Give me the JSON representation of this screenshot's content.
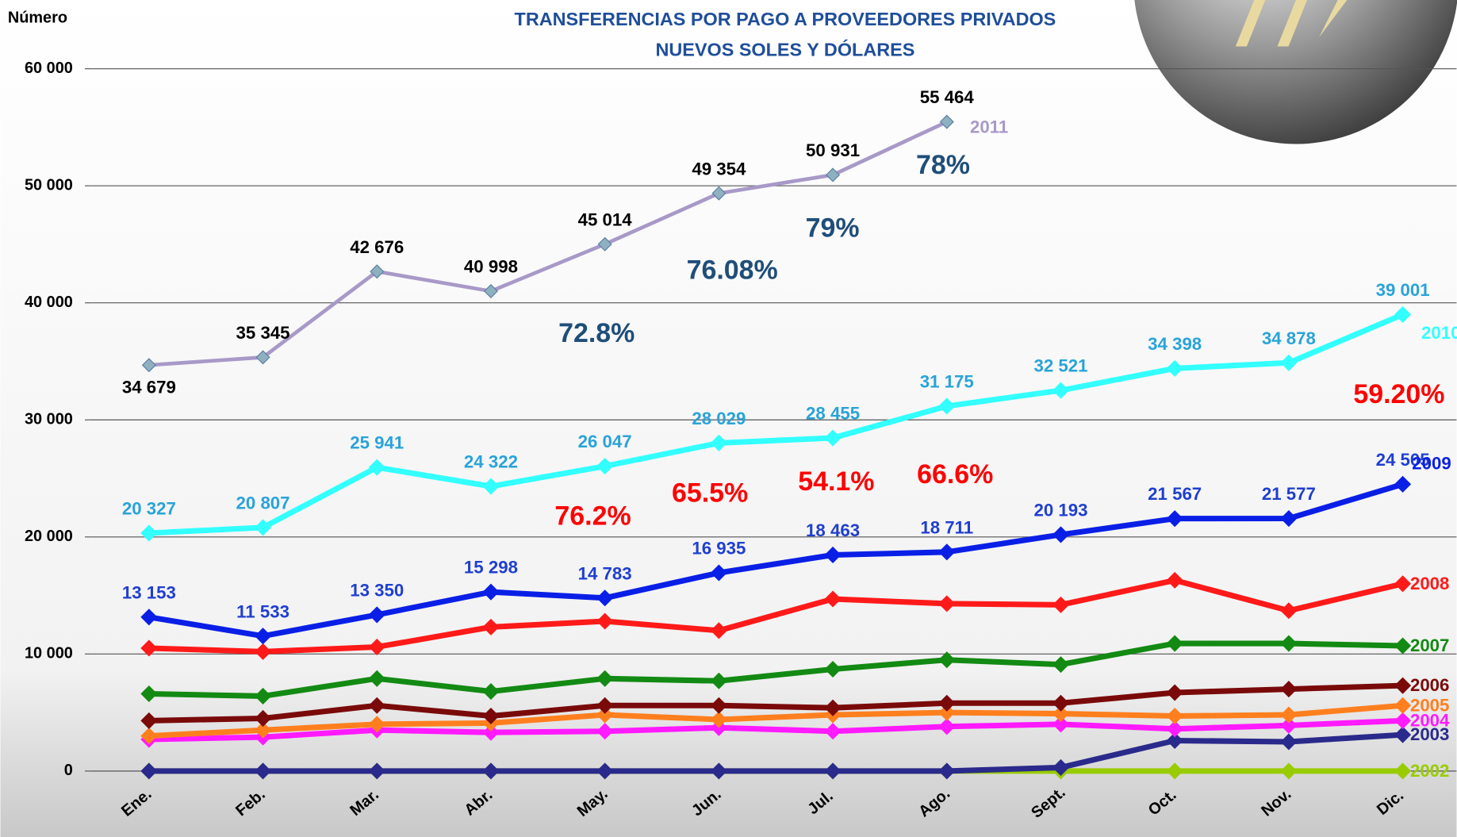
{
  "chart_data": {
    "type": "line",
    "title": "TRANSFERENCIAS POR PAGO A PROVEEDORES PRIVADOS",
    "subtitle": "NUEVOS SOLES Y  DÓLARES",
    "y_label": "Número",
    "categories": [
      "Ene.",
      "Feb.",
      "Mar.",
      "Abr.",
      "May.",
      "Jun.",
      "Jul.",
      "Ago.",
      "Sept.",
      "Oct.",
      "Nov.",
      "Dic."
    ],
    "ylim": [
      0,
      60000
    ],
    "yticks": [
      0,
      {
        "value": 10000,
        "label": "10 000"
      },
      {
        "value": 20000,
        "label": "20 000"
      },
      {
        "value": 30000,
        "label": "30 000"
      },
      {
        "value": 40000,
        "label": "40 000"
      },
      {
        "value": 50000,
        "label": "50 000"
      },
      {
        "value": 60000,
        "label": "60 000"
      }
    ],
    "grid": true,
    "series": [
      {
        "name": "2002",
        "color": "#99cc00",
        "values": [
          0,
          0,
          0,
          0,
          0,
          0,
          0,
          0,
          0,
          0,
          0,
          0
        ]
      },
      {
        "name": "2003",
        "color": "#2a2a8c",
        "values": [
          0,
          0,
          0,
          0,
          0,
          0,
          0,
          0,
          300,
          2600,
          2500,
          3100
        ]
      },
      {
        "name": "2004",
        "color": "#ff1aff",
        "values": [
          2700,
          2900,
          3500,
          3300,
          3400,
          3700,
          3400,
          3800,
          4000,
          3600,
          3900,
          4300
        ]
      },
      {
        "name": "2005",
        "color": "#ff7f1f",
        "values": [
          3000,
          3500,
          4000,
          4100,
          4800,
          4400,
          4800,
          5000,
          4900,
          4700,
          4800,
          5600
        ]
      },
      {
        "name": "2006",
        "color": "#7a0a0a",
        "values": [
          4300,
          4500,
          5600,
          4700,
          5600,
          5600,
          5400,
          5800,
          5800,
          6700,
          7000,
          7300
        ]
      },
      {
        "name": "2007",
        "color": "#138a13",
        "values": [
          6600,
          6400,
          7900,
          6800,
          7900,
          7700,
          8700,
          9500,
          9100,
          10900,
          10900,
          10700
        ]
      },
      {
        "name": "2008",
        "color": "#ff1a1a",
        "values": [
          10500,
          10200,
          10600,
          12300,
          12800,
          12000,
          14700,
          14300,
          14200,
          16300,
          13700,
          16000
        ]
      },
      {
        "name": "2009",
        "color": "#0a1fe6",
        "label_color": "#1f3fd0",
        "values": [
          13153,
          11533,
          13350,
          15298,
          14783,
          16935,
          18463,
          18711,
          20193,
          21567,
          21577,
          24505
        ],
        "value_labels": [
          "13 153",
          "11 533",
          "13 350",
          "15 298",
          "14 783",
          "16 935",
          "18 463",
          "18 711",
          "20 193",
          "21 567",
          "21 577",
          "24 505"
        ]
      },
      {
        "name": "2010",
        "color": "#33ffff",
        "label_color": "#29a3d9",
        "values": [
          20327,
          20807,
          25941,
          24322,
          26047,
          28029,
          28455,
          31175,
          32521,
          34398,
          34878,
          39001
        ],
        "value_labels": [
          "20 327",
          "20 807",
          "25 941",
          "24 322",
          "26 047",
          "28 029",
          "28 455",
          "31 175",
          "32 521",
          "34 398",
          "34 878",
          "39 001"
        ]
      },
      {
        "name": "2011",
        "color": "#a899c8",
        "label_color": "#000000",
        "values": [
          34679,
          35345,
          42676,
          40998,
          45014,
          49354,
          50931,
          55464,
          null,
          null,
          null,
          null
        ],
        "value_labels": [
          "34 679",
          "35 345",
          "42 676",
          "40 998",
          "45 014",
          "49 354",
          "50 931",
          "55 464",
          null,
          null,
          null,
          null
        ]
      }
    ],
    "annotations": [
      {
        "text": "72.8%",
        "color": "#1f4e79"
      },
      {
        "text": "76.08%",
        "color": "#1f4e79"
      },
      {
        "text": "79%",
        "color": "#1f4e79"
      },
      {
        "text": "78%",
        "color": "#1f4e79"
      },
      {
        "text": "76.2%",
        "color": "#ff0000"
      },
      {
        "text": "65.5%",
        "color": "#ff0000"
      },
      {
        "text": "54.1%",
        "color": "#ff0000"
      },
      {
        "text": "66.6%",
        "color": "#ff0000"
      },
      {
        "text": "59.20%",
        "color": "#ff0000"
      }
    ]
  }
}
